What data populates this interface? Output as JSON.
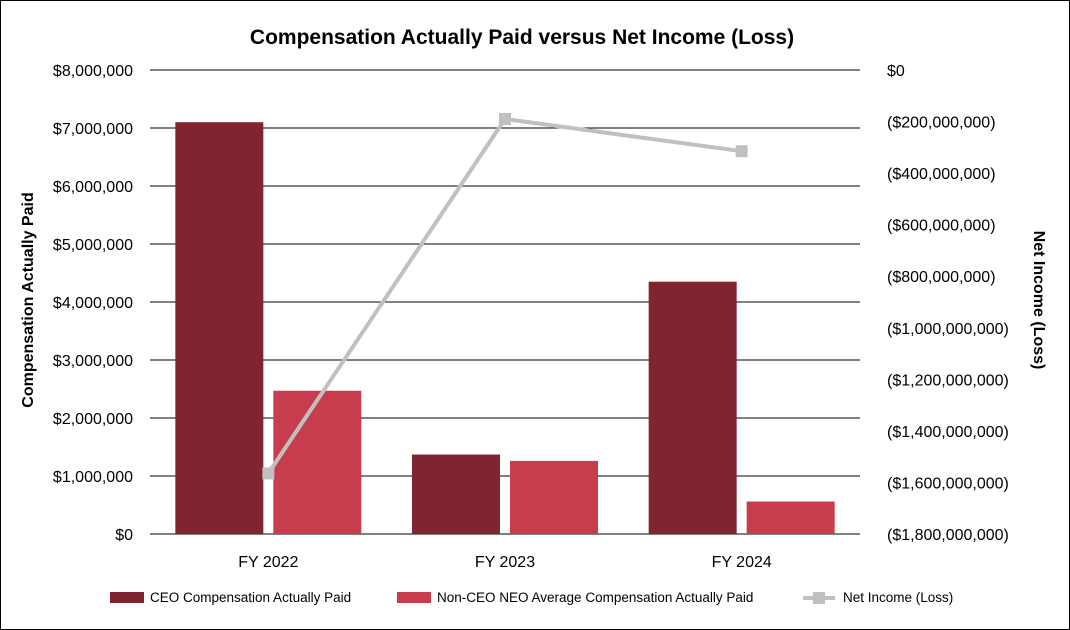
{
  "chart_data": {
    "type": "bar",
    "title": "Compensation Actually Paid versus Net Income (Loss)",
    "categories": [
      "FY 2022",
      "FY 2023",
      "FY 2024"
    ],
    "ylabel": "Compensation Actually Paid",
    "y2label": "Net Income (Loss)",
    "ylim": [
      0,
      8000000
    ],
    "y2lim": [
      -1800000000,
      0
    ],
    "y_ticks": [
      {
        "value": 0,
        "label": "$0"
      },
      {
        "value": 1000000,
        "label": "$1,000,000"
      },
      {
        "value": 2000000,
        "label": "$2,000,000"
      },
      {
        "value": 3000000,
        "label": "$3,000,000"
      },
      {
        "value": 4000000,
        "label": "$4,000,000"
      },
      {
        "value": 5000000,
        "label": "$5,000,000"
      },
      {
        "value": 6000000,
        "label": "$6,000,000"
      },
      {
        "value": 7000000,
        "label": "$7,000,000"
      },
      {
        "value": 8000000,
        "label": "$8,000,000"
      }
    ],
    "y2_ticks": [
      {
        "value": 0,
        "label": "$0"
      },
      {
        "value": -200000000,
        "label": "($200,000,000)"
      },
      {
        "value": -400000000,
        "label": "($400,000,000)"
      },
      {
        "value": -600000000,
        "label": "($600,000,000)"
      },
      {
        "value": -800000000,
        "label": "($800,000,000)"
      },
      {
        "value": -1000000000,
        "label": "($1,000,000,000)"
      },
      {
        "value": -1200000000,
        "label": "($1,200,000,000)"
      },
      {
        "value": -1400000000,
        "label": "($1,400,000,000)"
      },
      {
        "value": -1600000000,
        "label": "($1,600,000,000)"
      },
      {
        "value": -1800000000,
        "label": "($1,800,000,000)"
      }
    ],
    "series": [
      {
        "name": "CEO Compensation Actually Paid",
        "kind": "bar",
        "axis": "left",
        "color": "#7f2430",
        "values": [
          7100000,
          1370000,
          4350000
        ]
      },
      {
        "name": "Non-CEO NEO Average Compensation Actually Paid",
        "kind": "bar",
        "axis": "left",
        "color": "#c83d4e",
        "values": [
          2470000,
          1260000,
          560000
        ]
      },
      {
        "name": "Net Income (Loss)",
        "kind": "line",
        "axis": "right",
        "color": "#c0c0c0",
        "values": [
          -1565000000,
          -190000000,
          -315000000
        ]
      }
    ],
    "grid": true,
    "legend_position": "bottom"
  }
}
